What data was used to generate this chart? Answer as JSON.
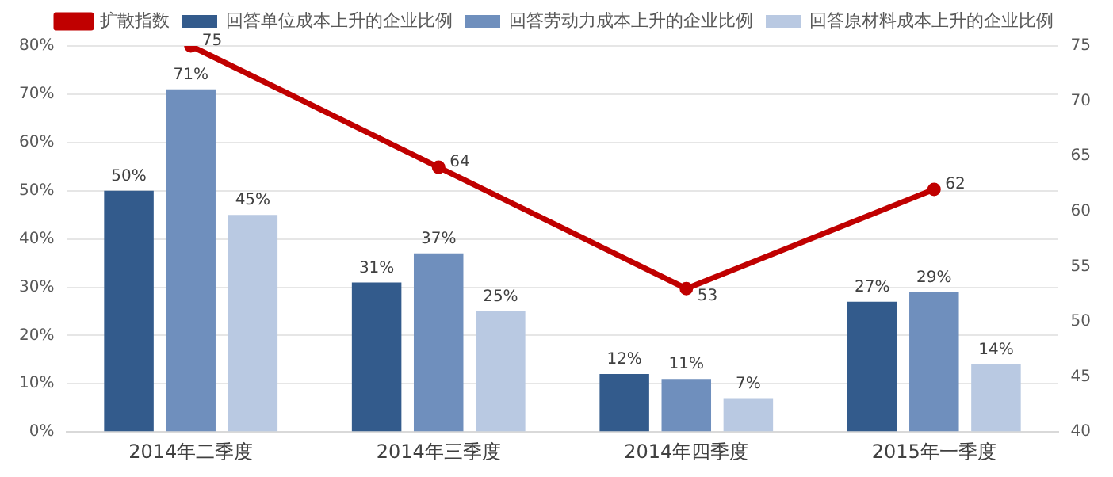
{
  "chart_data": {
    "type": "bar",
    "categories": [
      "2014年二季度",
      "2014年三季度",
      "2014年四季度",
      "2015年一季度"
    ],
    "series": [
      {
        "name": "回答单位成本上升的企业比例",
        "color": "#335b8c",
        "values": [
          50,
          31,
          12,
          27
        ],
        "value_labels": [
          "50%",
          "31%",
          "12%",
          "27%"
        ]
      },
      {
        "name": "回答劳动力成本上升的企业比例",
        "color": "#6f8fbd",
        "values": [
          71,
          37,
          11,
          29
        ],
        "value_labels": [
          "71%",
          "37%",
          "11%",
          "29%"
        ]
      },
      {
        "name": "回答原材料成本上升的企业比例",
        "color": "#b9c9e2",
        "values": [
          45,
          25,
          7,
          14
        ],
        "value_labels": [
          "45%",
          "25%",
          "7%",
          "14%"
        ]
      },
      {
        "name": "扩散指数",
        "type": "line",
        "axis": "y2",
        "color": "#c00000",
        "values": [
          75,
          64,
          53,
          62
        ],
        "value_labels": [
          "75",
          "64",
          "53",
          "62"
        ]
      }
    ],
    "ylim": [
      0,
      80
    ],
    "yticks": [
      {
        "value": 0,
        "label": "0%"
      },
      {
        "value": 10,
        "label": "10%"
      },
      {
        "value": 20,
        "label": "20%"
      },
      {
        "value": 30,
        "label": "30%"
      },
      {
        "value": 40,
        "label": "40%"
      },
      {
        "value": 50,
        "label": "50%"
      },
      {
        "value": 60,
        "label": "60%"
      },
      {
        "value": 70,
        "label": "70%"
      },
      {
        "value": 80,
        "label": "80%"
      }
    ],
    "y2lim": [
      40,
      75
    ],
    "y2ticks": [
      40,
      45,
      50,
      55,
      60,
      65,
      70,
      75
    ],
    "grid": "y",
    "legend": "top",
    "marker": "circle",
    "line_style": "solid"
  }
}
